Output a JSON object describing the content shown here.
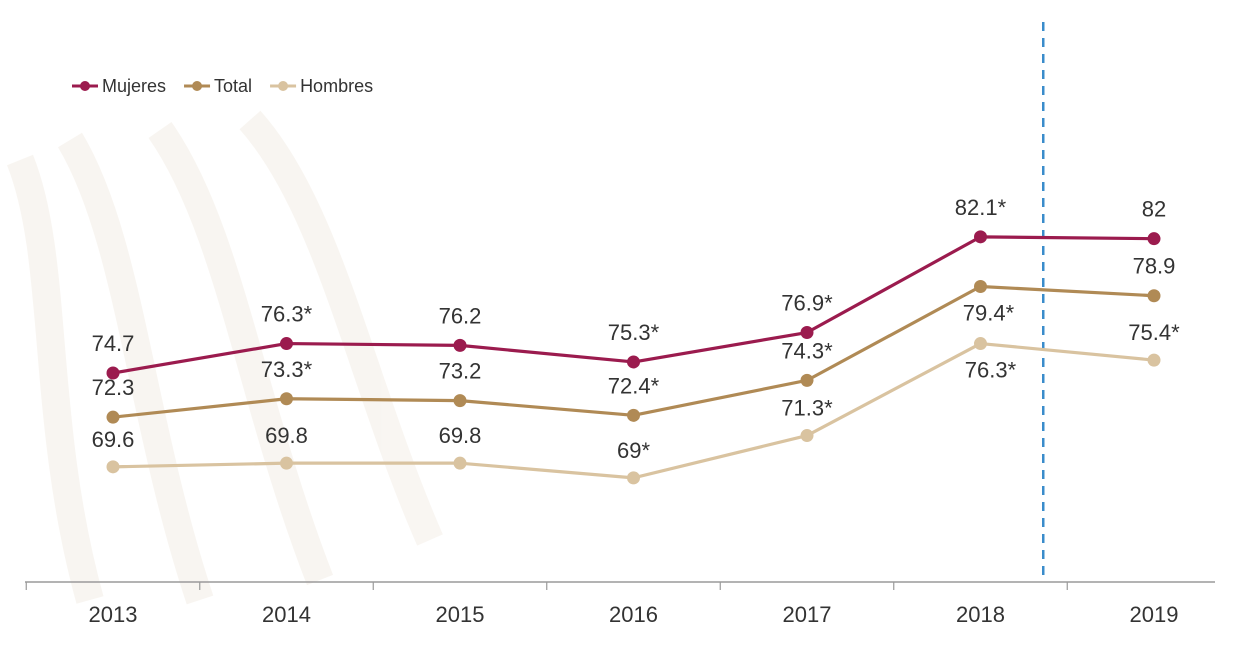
{
  "chart_data": {
    "type": "line",
    "categories": [
      "2013",
      "2014",
      "2015",
      "2016",
      "2017",
      "2018",
      "2019"
    ],
    "series": [
      {
        "name": "Mujeres",
        "color": "#9b1b4e",
        "values": [
          74.7,
          76.3,
          76.2,
          75.3,
          76.9,
          82.1,
          82
        ],
        "labels": [
          "74.7",
          "76.3*",
          "76.2",
          "75.3*",
          "76.9*",
          "82.1*",
          "82"
        ]
      },
      {
        "name": "Total",
        "color": "#b08a55",
        "values": [
          72.3,
          73.3,
          73.2,
          72.4,
          74.3,
          79.4,
          78.9
        ],
        "labels": [
          "72.3",
          "73.3*",
          "73.2",
          "72.4*",
          "74.3*",
          "79.4*",
          "78.9"
        ]
      },
      {
        "name": "Hombres",
        "color": "#d9c3a0",
        "values": [
          69.6,
          69.8,
          69.8,
          69,
          71.3,
          76.3,
          75.4
        ],
        "labels": [
          "69.6",
          "69.8",
          "69.8",
          "69*",
          "71.3*",
          "76.3*",
          "75.4*"
        ]
      }
    ],
    "legend_position": "top-left",
    "grid": false,
    "reference_line": {
      "style": "dashed",
      "color": "#3a8ccb",
      "between": [
        "2018",
        "2019"
      ]
    }
  }
}
